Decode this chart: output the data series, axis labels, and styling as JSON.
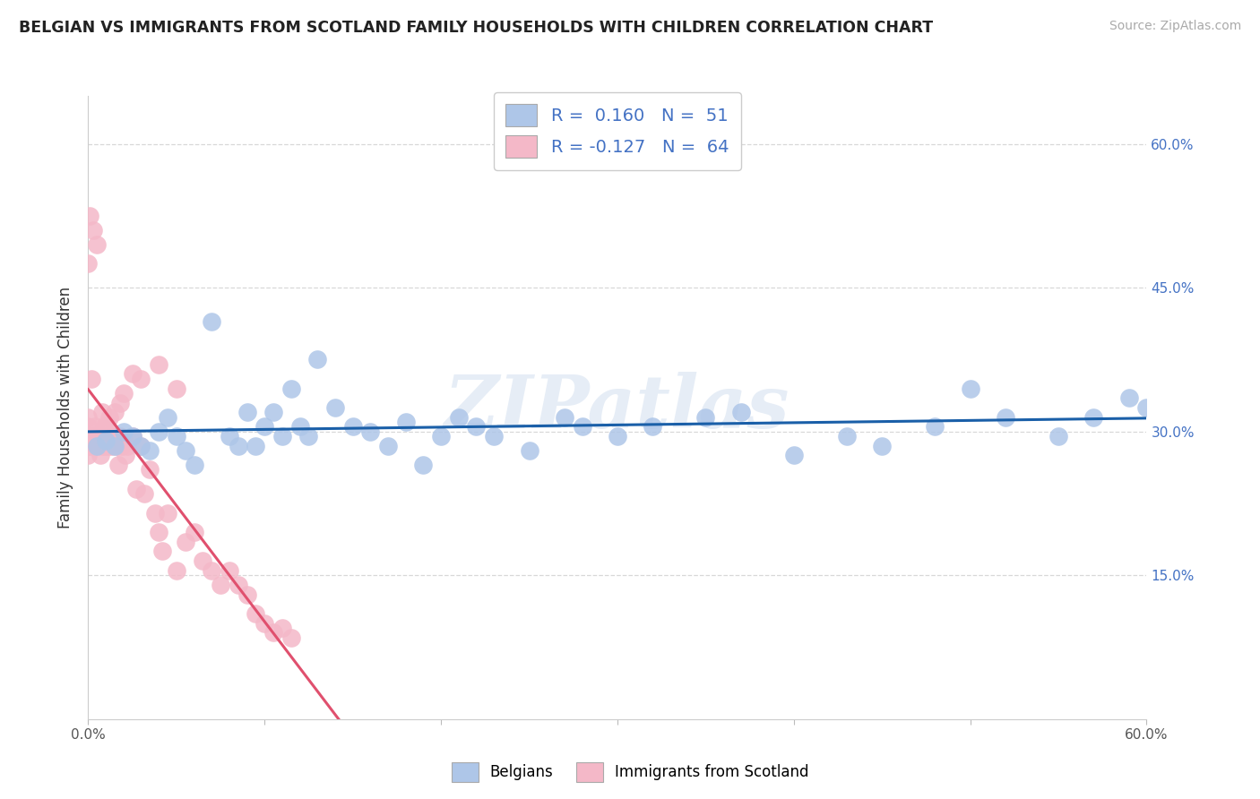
{
  "title": "BELGIAN VS IMMIGRANTS FROM SCOTLAND FAMILY HOUSEHOLDS WITH CHILDREN CORRELATION CHART",
  "source": "Source: ZipAtlas.com",
  "ylabel": "Family Households with Children",
  "xlim": [
    0.0,
    0.6
  ],
  "ylim": [
    0.0,
    0.65
  ],
  "xtick_vals": [
    0.0,
    0.1,
    0.2,
    0.3,
    0.4,
    0.5,
    0.6
  ],
  "xtick_labels": [
    "0.0%",
    "",
    "",
    "",
    "",
    "",
    "60.0%"
  ],
  "ytick_right_vals": [
    0.6,
    0.45,
    0.3,
    0.15
  ],
  "ytick_right_labels": [
    "60.0%",
    "45.0%",
    "30.0%",
    "15.0%"
  ],
  "belgian_R": 0.16,
  "belgian_N": 51,
  "scotland_R": -0.127,
  "scotland_N": 64,
  "belgian_color": "#aec6e8",
  "scotland_color": "#f4b8c8",
  "belgian_line_color": "#1a5fa8",
  "scotland_solid_color": "#e0506e",
  "scotland_dash_color": "#d0b0bb",
  "background_color": "#ffffff",
  "grid_color": "#d8d8d8",
  "watermark": "ZIPatlas",
  "legend_label_1": "Belgians",
  "legend_label_2": "Immigrants from Scotland",
  "belgians_x": [
    0.005,
    0.01,
    0.015,
    0.02,
    0.025,
    0.03,
    0.035,
    0.04,
    0.045,
    0.05,
    0.055,
    0.07,
    0.08,
    0.085,
    0.09,
    0.095,
    0.1,
    0.105,
    0.11,
    0.115,
    0.12,
    0.125,
    0.13,
    0.14,
    0.15,
    0.16,
    0.17,
    0.18,
    0.19,
    0.2,
    0.21,
    0.22,
    0.23,
    0.25,
    0.27,
    0.28,
    0.3,
    0.32,
    0.35,
    0.37,
    0.4,
    0.43,
    0.45,
    0.48,
    0.5,
    0.52,
    0.55,
    0.57,
    0.59,
    0.6,
    0.06
  ],
  "belgians_y": [
    0.285,
    0.29,
    0.285,
    0.3,
    0.295,
    0.285,
    0.28,
    0.3,
    0.315,
    0.295,
    0.28,
    0.415,
    0.295,
    0.285,
    0.32,
    0.285,
    0.305,
    0.32,
    0.295,
    0.345,
    0.305,
    0.295,
    0.375,
    0.325,
    0.305,
    0.3,
    0.285,
    0.31,
    0.265,
    0.295,
    0.315,
    0.305,
    0.295,
    0.28,
    0.315,
    0.305,
    0.295,
    0.305,
    0.315,
    0.32,
    0.275,
    0.295,
    0.285,
    0.305,
    0.345,
    0.315,
    0.295,
    0.315,
    0.335,
    0.325,
    0.265
  ],
  "scotland_x": [
    0.0,
    0.0,
    0.0,
    0.0,
    0.0,
    0.002,
    0.003,
    0.004,
    0.005,
    0.006,
    0.007,
    0.008,
    0.009,
    0.01,
    0.01,
    0.01,
    0.012,
    0.013,
    0.014,
    0.015,
    0.016,
    0.017,
    0.018,
    0.019,
    0.02,
    0.021,
    0.022,
    0.025,
    0.027,
    0.03,
    0.032,
    0.035,
    0.038,
    0.04,
    0.042,
    0.045,
    0.05,
    0.055,
    0.06,
    0.065,
    0.07,
    0.075,
    0.08,
    0.085,
    0.09,
    0.095,
    0.1,
    0.105,
    0.11,
    0.115,
    0.012,
    0.015,
    0.018,
    0.02,
    0.025,
    0.03,
    0.04,
    0.05,
    0.002,
    0.008,
    0.005,
    0.003,
    0.001,
    0.0
  ],
  "scotland_y": [
    0.285,
    0.295,
    0.275,
    0.305,
    0.315,
    0.285,
    0.295,
    0.305,
    0.285,
    0.295,
    0.275,
    0.285,
    0.305,
    0.285,
    0.295,
    0.305,
    0.285,
    0.295,
    0.285,
    0.295,
    0.285,
    0.265,
    0.295,
    0.285,
    0.29,
    0.275,
    0.285,
    0.295,
    0.24,
    0.285,
    0.235,
    0.26,
    0.215,
    0.195,
    0.175,
    0.215,
    0.155,
    0.185,
    0.195,
    0.165,
    0.155,
    0.14,
    0.155,
    0.14,
    0.13,
    0.11,
    0.1,
    0.09,
    0.095,
    0.085,
    0.315,
    0.32,
    0.33,
    0.34,
    0.36,
    0.355,
    0.37,
    0.345,
    0.355,
    0.32,
    0.495,
    0.51,
    0.525,
    0.475
  ]
}
